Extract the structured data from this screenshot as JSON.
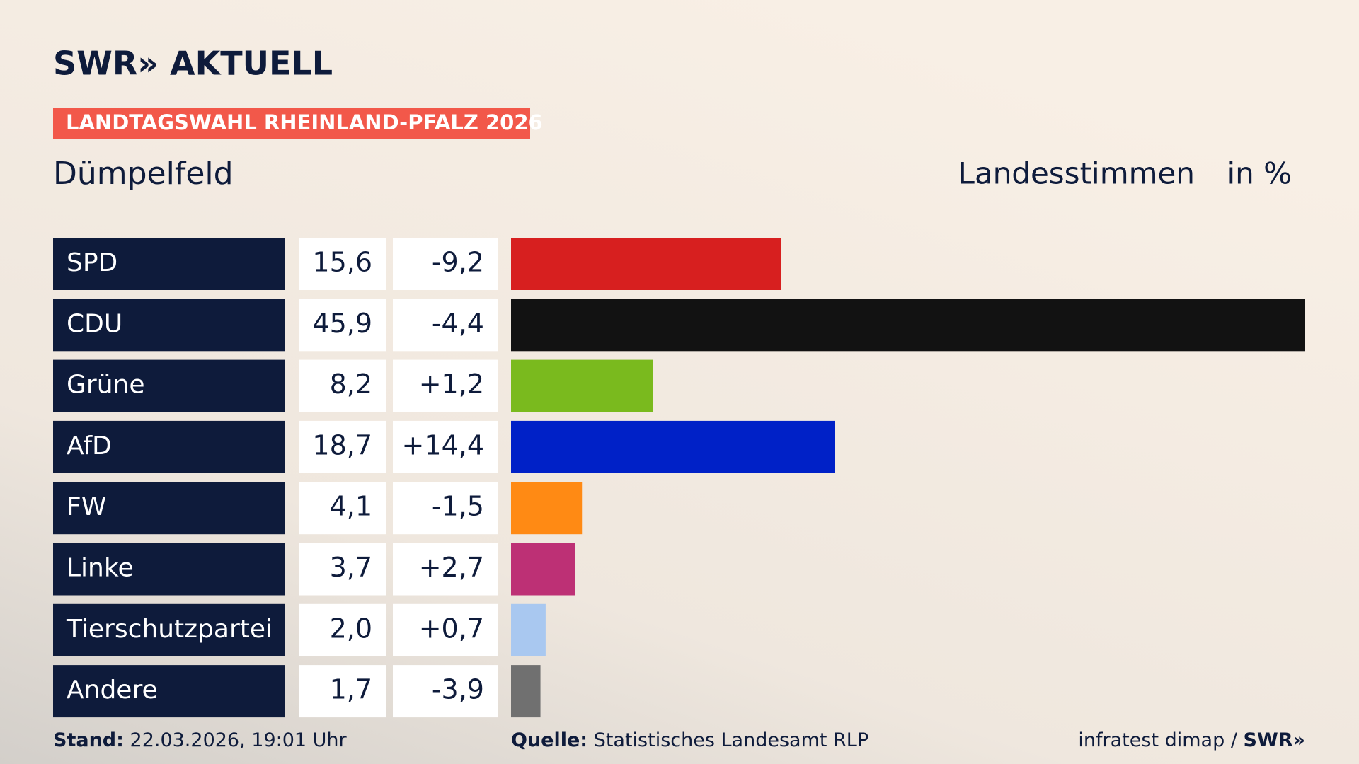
{
  "logo": "SWR» AKTUELL",
  "chart_data": {
    "type": "bar",
    "badge": "LANDTAGSWAHL RHEINLAND-PFALZ 2026",
    "title": "Dümpelfeld",
    "measure": "Landesstimmen",
    "unit": "in %",
    "categories": [
      "SPD",
      "CDU",
      "Grüne",
      "AfD",
      "FW",
      "Linke",
      "Tierschutzpartei",
      "Andere"
    ],
    "values": [
      15.6,
      45.9,
      8.2,
      18.7,
      4.1,
      3.7,
      2.0,
      1.7
    ],
    "value_labels": [
      "15,6",
      "45,9",
      "8,2",
      "18,7",
      "4,1",
      "3,7",
      "2,0",
      "1,7"
    ],
    "changes": [
      -9.2,
      -4.4,
      1.2,
      14.4,
      -1.5,
      2.7,
      0.7,
      -3.9
    ],
    "change_labels": [
      "-9,2",
      "-4,4",
      "+1,2",
      "+14,4",
      "-1,5",
      "+2,7",
      "+0,7",
      "-3,9"
    ],
    "colors": [
      "#d71f1f",
      "#121212",
      "#7aba1e",
      "#0021c7",
      "#ff8a14",
      "#bd3075",
      "#a9c8f0",
      "#707070"
    ]
  },
  "footer": {
    "stand_label": "Stand:",
    "stand": "22.03.2026, 19:01 Uhr",
    "source_label": "Quelle:",
    "source": "Statistisches Landesamt RLP",
    "credit": "infratest dimap /",
    "credit_logo": "SWR»"
  }
}
